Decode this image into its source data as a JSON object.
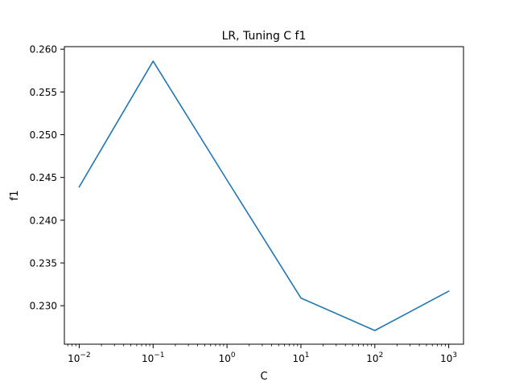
{
  "chart_data": {
    "type": "line",
    "title": "LR, Tuning C f1",
    "xlabel": "C",
    "ylabel": "f1",
    "x_scale": "log",
    "xlim": [
      0.0063,
      1585
    ],
    "ylim": [
      0.2255,
      0.2603
    ],
    "x_ticks": [
      {
        "value": 0.01,
        "base": "10",
        "exp": "−2"
      },
      {
        "value": 0.1,
        "base": "10",
        "exp": "−1"
      },
      {
        "value": 1,
        "base": "10",
        "exp": "0"
      },
      {
        "value": 10,
        "base": "10",
        "exp": "1"
      },
      {
        "value": 100,
        "base": "10",
        "exp": "2"
      },
      {
        "value": 1000,
        "base": "10",
        "exp": "3"
      }
    ],
    "y_ticks": [
      0.23,
      0.235,
      0.24,
      0.245,
      0.25,
      0.255,
      0.26
    ],
    "y_tick_labels": [
      "0.230",
      "0.235",
      "0.240",
      "0.245",
      "0.250",
      "0.255",
      "0.260"
    ],
    "grid": false,
    "series": [
      {
        "color": "#1f77b4",
        "x": [
          0.01,
          0.1,
          1,
          10,
          100,
          1000
        ],
        "y": [
          0.2439,
          0.2586,
          0.2447,
          0.2309,
          0.2271,
          0.2317
        ]
      }
    ]
  }
}
